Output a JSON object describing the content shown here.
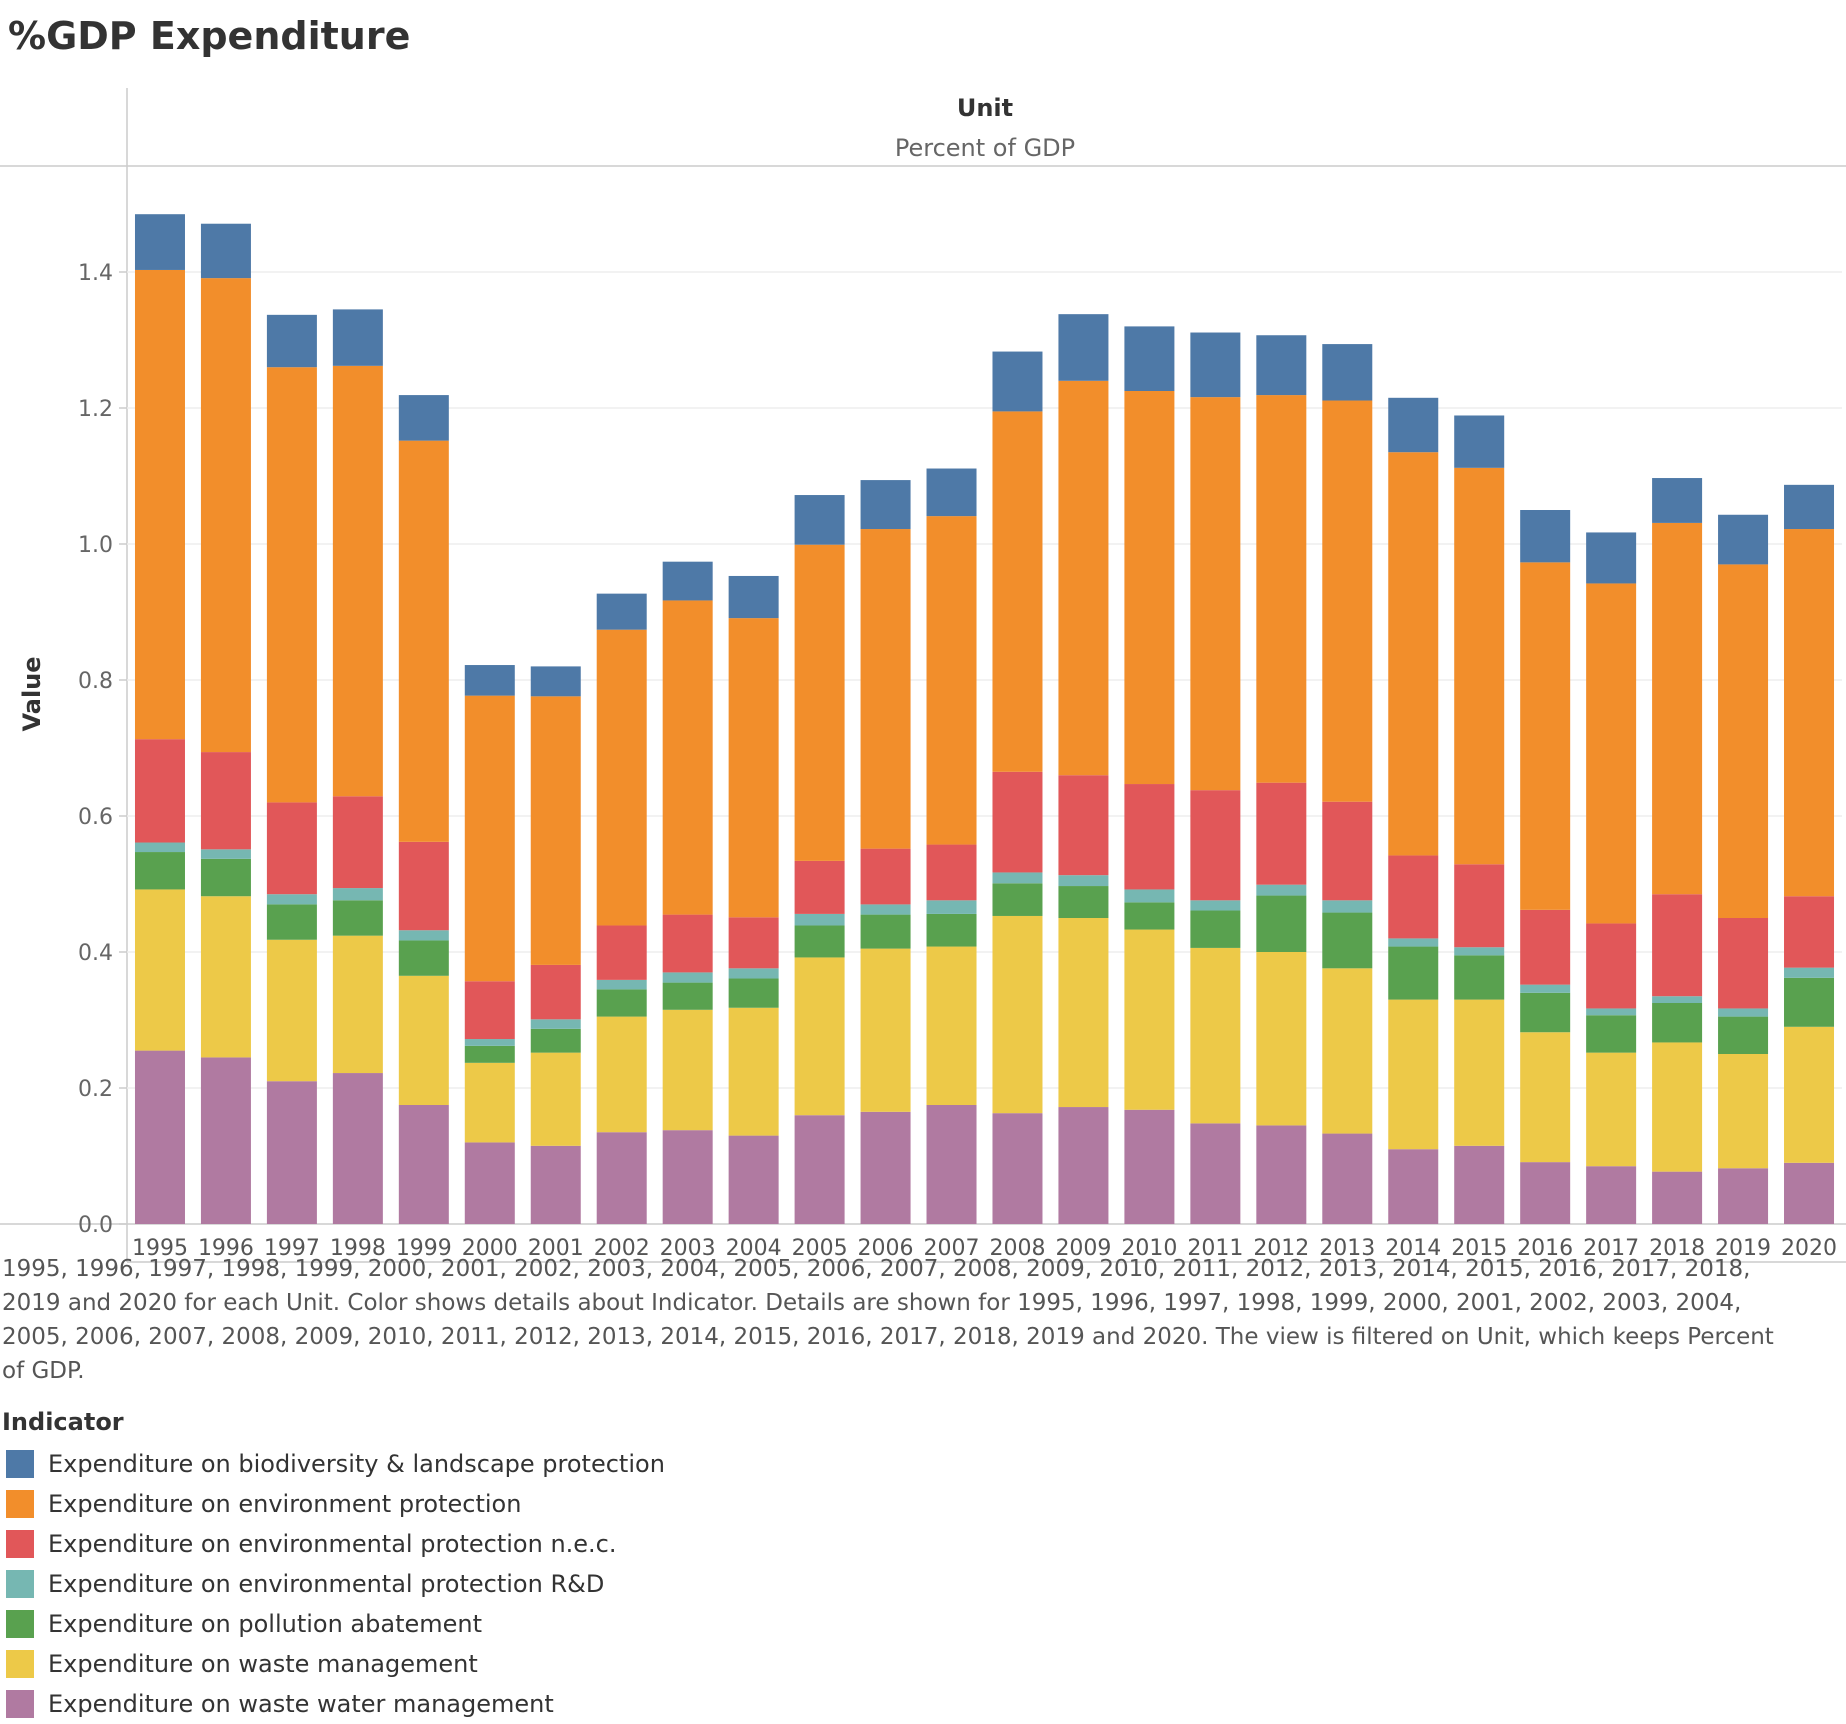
{
  "title": "%GDP Expenditure",
  "header": {
    "column_label": "Unit",
    "column_value": "Percent of GDP"
  },
  "caption": "1995, 1996, 1997, 1998, 1999, 2000, 2001, 2002, 2003, 2004, 2005, 2006, 2007, 2008, 2009, 2010, 2011, 2012, 2013, 2014, 2015, 2016, 2017, 2018, 2019 and 2020 for each Unit.  Color shows details about Indicator.  Details are shown for 1995, 1996, 1997, 1998, 1999, 2000, 2001, 2002, 2003, 2004, 2005, 2006, 2007, 2008, 2009, 2010, 2011, 2012, 2013, 2014, 2015, 2016, 2017, 2018, 2019 and 2020. The view is filtered on Unit, which keeps Percent of GDP.",
  "legend_title": "Indicator",
  "chart_data": {
    "type": "bar",
    "stacked": true,
    "ylabel": "Value",
    "xlabel": "",
    "ylim": [
      0,
      1.55
    ],
    "yticks": [
      "0.0",
      "0.2",
      "0.4",
      "0.6",
      "0.8",
      "1.0",
      "1.2",
      "1.4"
    ],
    "grid": true,
    "legend_position": "bottom-left",
    "categories": [
      "1995",
      "1996",
      "1997",
      "1998",
      "1999",
      "2000",
      "2001",
      "2002",
      "2003",
      "2004",
      "2005",
      "2006",
      "2007",
      "2008",
      "2009",
      "2010",
      "2011",
      "2012",
      "2013",
      "2014",
      "2015",
      "2016",
      "2017",
      "2018",
      "2019",
      "2020"
    ],
    "series": [
      {
        "name": "Expenditure on waste water management",
        "color": "#b07aa1",
        "values": [
          0.255,
          0.245,
          0.21,
          0.222,
          0.175,
          0.12,
          0.115,
          0.135,
          0.138,
          0.13,
          0.16,
          0.165,
          0.175,
          0.163,
          0.172,
          0.168,
          0.148,
          0.145,
          0.133,
          0.11,
          0.115,
          0.091,
          0.085,
          0.077,
          0.082,
          0.09
        ]
      },
      {
        "name": "Expenditure on waste management",
        "color": "#edc948",
        "values": [
          0.237,
          0.237,
          0.208,
          0.202,
          0.19,
          0.117,
          0.137,
          0.17,
          0.177,
          0.188,
          0.232,
          0.24,
          0.233,
          0.29,
          0.278,
          0.265,
          0.258,
          0.255,
          0.243,
          0.22,
          0.215,
          0.191,
          0.167,
          0.19,
          0.168,
          0.2
        ]
      },
      {
        "name": "Expenditure on pollution abatement",
        "color": "#59a14f",
        "values": [
          0.055,
          0.055,
          0.052,
          0.052,
          0.052,
          0.025,
          0.035,
          0.04,
          0.04,
          0.043,
          0.047,
          0.05,
          0.048,
          0.048,
          0.047,
          0.04,
          0.055,
          0.083,
          0.082,
          0.078,
          0.065,
          0.058,
          0.055,
          0.058,
          0.055,
          0.072
        ]
      },
      {
        "name": "Expenditure on environmental protection R&D",
        "color": "#76b7b2",
        "values": [
          0.014,
          0.014,
          0.015,
          0.018,
          0.015,
          0.01,
          0.014,
          0.014,
          0.015,
          0.015,
          0.017,
          0.015,
          0.02,
          0.016,
          0.016,
          0.019,
          0.015,
          0.016,
          0.018,
          0.012,
          0.012,
          0.012,
          0.01,
          0.01,
          0.012,
          0.015
        ]
      },
      {
        "name": "Expenditure on environmental protection n.e.c.",
        "color": "#e15759",
        "values": [
          0.152,
          0.143,
          0.135,
          0.135,
          0.13,
          0.085,
          0.08,
          0.08,
          0.085,
          0.075,
          0.078,
          0.082,
          0.082,
          0.148,
          0.147,
          0.155,
          0.162,
          0.15,
          0.145,
          0.122,
          0.122,
          0.11,
          0.125,
          0.15,
          0.133,
          0.105
        ]
      },
      {
        "name": "Expenditure on environment protection",
        "color": "#f28e2b",
        "values": [
          0.69,
          0.697,
          0.64,
          0.633,
          0.59,
          0.42,
          0.395,
          0.435,
          0.462,
          0.44,
          0.465,
          0.47,
          0.483,
          0.53,
          0.58,
          0.578,
          0.578,
          0.57,
          0.59,
          0.593,
          0.583,
          0.511,
          0.5,
          0.546,
          0.52,
          0.54
        ]
      },
      {
        "name": "Expenditure on biodiversity & landscape protection",
        "color": "#4e79a7",
        "values": [
          0.082,
          0.08,
          0.077,
          0.083,
          0.067,
          0.045,
          0.044,
          0.053,
          0.057,
          0.062,
          0.073,
          0.072,
          0.07,
          0.088,
          0.098,
          0.095,
          0.095,
          0.088,
          0.083,
          0.08,
          0.077,
          0.077,
          0.075,
          0.066,
          0.073,
          0.065
        ]
      }
    ]
  }
}
